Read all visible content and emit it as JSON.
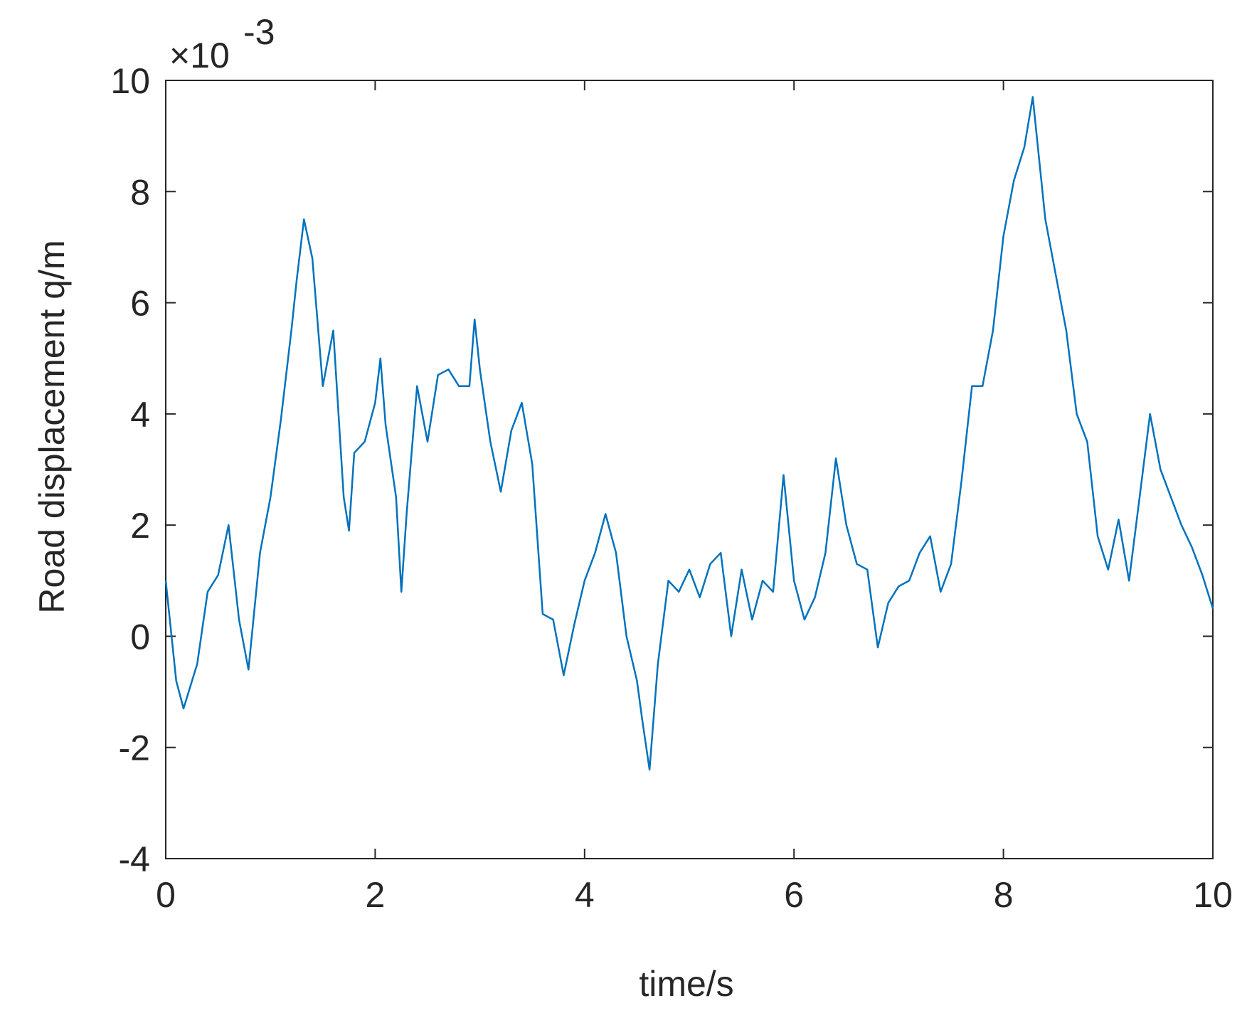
{
  "chart_data": {
    "type": "line",
    "xlabel": "time/s",
    "ylabel": "Road displacement q/m",
    "y_scale_base": "×10",
    "y_scale_exponent": "-3",
    "color": "#0072bd",
    "x": [
      0,
      0.1,
      0.17,
      0.3,
      0.4,
      0.5,
      0.6,
      0.7,
      0.79,
      0.9,
      1.0,
      1.1,
      1.2,
      1.25,
      1.32,
      1.4,
      1.5,
      1.6,
      1.7,
      1.75,
      1.8,
      1.9,
      2.0,
      2.05,
      2.1,
      2.2,
      2.25,
      2.3,
      2.4,
      2.5,
      2.6,
      2.7,
      2.8,
      2.9,
      2.95,
      3.0,
      3.1,
      3.2,
      3.3,
      3.4,
      3.5,
      3.6,
      3.7,
      3.8,
      3.9,
      4.0,
      4.1,
      4.2,
      4.3,
      4.4,
      4.5,
      4.55,
      4.62,
      4.7,
      4.8,
      4.9,
      5.0,
      5.1,
      5.2,
      5.3,
      5.4,
      5.5,
      5.6,
      5.7,
      5.8,
      5.9,
      6.0,
      6.1,
      6.2,
      6.3,
      6.4,
      6.5,
      6.6,
      6.7,
      6.8,
      6.9,
      7.0,
      7.1,
      7.2,
      7.3,
      7.4,
      7.5,
      7.6,
      7.7,
      7.8,
      7.9,
      8.0,
      8.1,
      8.2,
      8.28,
      8.4,
      8.5,
      8.6,
      8.7,
      8.8,
      8.9,
      9.0,
      9.1,
      9.2,
      9.3,
      9.4,
      9.5,
      9.6,
      9.7,
      9.8,
      9.9,
      10.0
    ],
    "values": [
      1.0,
      -0.8,
      -1.3,
      -0.5,
      0.8,
      1.1,
      2.0,
      0.3,
      -0.6,
      1.5,
      2.5,
      3.9,
      5.5,
      6.4,
      7.5,
      6.8,
      4.5,
      5.5,
      2.5,
      1.9,
      3.3,
      3.5,
      4.2,
      5.0,
      3.8,
      2.5,
      0.8,
      2.2,
      4.5,
      3.5,
      4.7,
      4.8,
      4.5,
      4.5,
      5.7,
      4.8,
      3.5,
      2.6,
      3.7,
      4.2,
      3.1,
      0.4,
      0.3,
      -0.7,
      0.2,
      1.0,
      1.5,
      2.2,
      1.5,
      0.0,
      -0.8,
      -1.5,
      -2.4,
      -0.5,
      1.0,
      0.8,
      1.2,
      0.7,
      1.3,
      1.5,
      0.0,
      1.2,
      0.3,
      1.0,
      0.8,
      2.9,
      1.0,
      0.3,
      0.7,
      1.5,
      3.2,
      2.0,
      1.3,
      1.2,
      -0.2,
      0.6,
      0.9,
      1.0,
      1.5,
      1.8,
      0.8,
      1.3,
      2.8,
      4.5,
      4.5,
      5.5,
      7.2,
      8.2,
      8.8,
      9.7,
      7.5,
      6.5,
      5.5,
      4.0,
      3.5,
      1.8,
      1.2,
      2.1,
      1.0,
      2.5,
      4.0,
      3.0,
      2.5,
      2.0,
      1.6,
      1.1,
      0.5
    ],
    "xlim": [
      0,
      10
    ],
    "xticks": [
      0,
      2,
      4,
      6,
      8,
      10
    ],
    "ylim": [
      -4,
      10
    ],
    "yticks": [
      -4,
      -2,
      0,
      2,
      4,
      6,
      8,
      10
    ]
  }
}
